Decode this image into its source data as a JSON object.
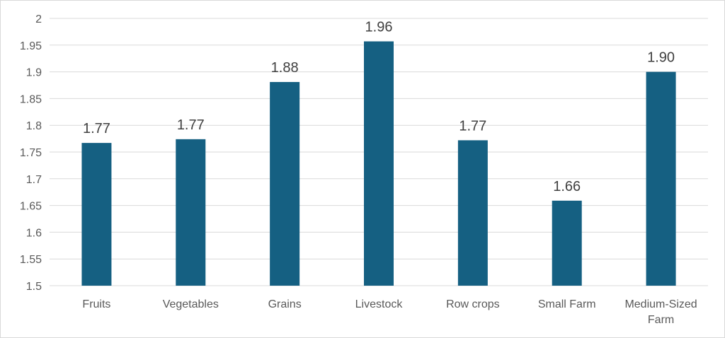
{
  "chart_data": {
    "type": "bar",
    "categories": [
      "Fruits",
      "Vegetables",
      "Grains",
      "Livestock",
      "Row crops",
      "Small Farm",
      "Medium-Sized Farm"
    ],
    "category_lines": [
      [
        "Fruits"
      ],
      [
        "Vegetables"
      ],
      [
        "Grains"
      ],
      [
        "Livestock"
      ],
      [
        "Row crops"
      ],
      [
        "Small Farm"
      ],
      [
        "Medium-Sized",
        "Farm"
      ]
    ],
    "values": [
      1.767,
      1.774,
      1.881,
      1.957,
      1.772,
      1.659,
      1.9
    ],
    "data_labels": [
      "1.77",
      "1.77",
      "1.88",
      "1.96",
      "1.77",
      "1.66",
      "1.90"
    ],
    "title": "",
    "xlabel": "",
    "ylabel": "",
    "ylim": [
      1.5,
      2.0
    ],
    "yticks": [
      1.5,
      1.55,
      1.6,
      1.65,
      1.7,
      1.75,
      1.8,
      1.85,
      1.9,
      1.95,
      2
    ],
    "ytick_labels": [
      "1.5",
      "1.55",
      "1.6",
      "1.65",
      "1.7",
      "1.75",
      "1.8",
      "1.85",
      "1.9",
      "1.95",
      "2"
    ],
    "grid": true,
    "legend": "none",
    "bar_color": "#156082"
  }
}
